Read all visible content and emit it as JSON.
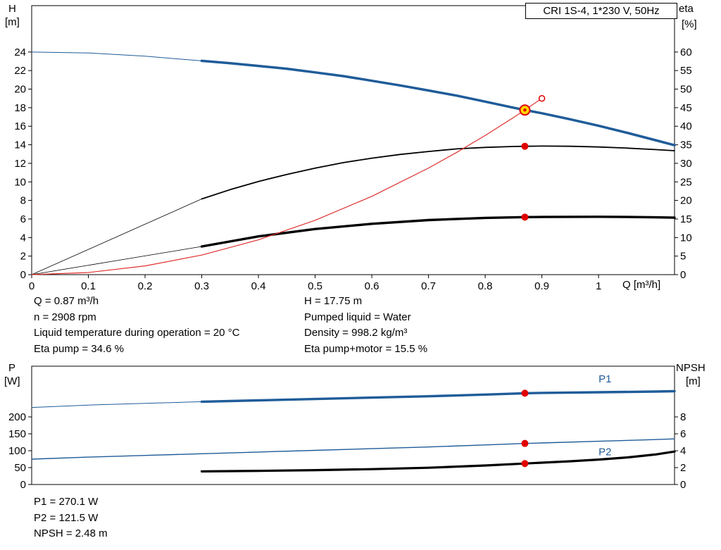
{
  "title_box": "CRI 1S-4, 1*230 V, 50Hz",
  "colors": {
    "curve_blue": "#1f5c99",
    "curve_black": "#000000",
    "curve_red": "#e03030",
    "marker_red": "#e00000",
    "duty_yellow": "#ffd800",
    "axis": "#000000"
  },
  "annotations": {
    "left": [
      "Q = 0.87 m³/h",
      "n = 2908 rpm",
      "Liquid temperature during operation = 20 °C",
      "Eta pump = 34.6 %"
    ],
    "right": [
      "H = 17.75 m",
      "Pumped liquid = Water",
      "Density = 998.2 kg/m³",
      "Eta pump+motor = 15.5 %"
    ],
    "bottom": [
      "P1 = 270.1 W",
      "P2 = 121.5 W",
      "NPSH = 2.48 m"
    ]
  },
  "chart_data": [
    {
      "type": "line",
      "title": "CRI 1S-4, 1*230 V, 50Hz",
      "x_label": "Q [m³/h]",
      "x": {
        "ticks": [
          0,
          0.1,
          0.2,
          0.3,
          0.4,
          0.5,
          0.6,
          0.7,
          0.8,
          0.9,
          1.0
        ],
        "max": 1.134
      },
      "y_left": {
        "label": "H",
        "unit": "[m]",
        "ticks": [
          0,
          2,
          4,
          6,
          8,
          10,
          12,
          14,
          16,
          18,
          20,
          22,
          24
        ],
        "max": 29.0
      },
      "y_right": {
        "label": "eta",
        "unit": "[%]",
        "ticks": [
          0,
          5,
          10,
          15,
          20,
          25,
          30,
          35,
          40,
          45,
          50,
          55,
          60
        ],
        "max": 72.5
      },
      "series": [
        {
          "name": "head-curve-thin",
          "axis": "left",
          "color": "#1f5c99",
          "width": 1,
          "points": [
            [
              0,
              24.0
            ],
            [
              0.1,
              23.9
            ],
            [
              0.2,
              23.55
            ],
            [
              0.3,
              23.05
            ]
          ]
        },
        {
          "name": "head-curve",
          "axis": "left",
          "color": "#1f5c99",
          "width": 3.5,
          "points": [
            [
              0.3,
              23.05
            ],
            [
              0.35,
              22.8
            ],
            [
              0.4,
              22.5
            ],
            [
              0.45,
              22.2
            ],
            [
              0.5,
              21.8
            ],
            [
              0.55,
              21.4
            ],
            [
              0.6,
              20.9
            ],
            [
              0.65,
              20.4
            ],
            [
              0.7,
              19.85
            ],
            [
              0.75,
              19.3
            ],
            [
              0.8,
              18.65
            ],
            [
              0.85,
              18.0
            ],
            [
              0.87,
              17.75
            ],
            [
              0.9,
              17.4
            ],
            [
              0.95,
              16.75
            ],
            [
              1.0,
              16.05
            ],
            [
              1.05,
              15.3
            ],
            [
              1.1,
              14.5
            ],
            [
              1.134,
              13.95
            ]
          ]
        },
        {
          "name": "eta-pump-curve-thin",
          "axis": "right",
          "color": "#000000",
          "width": 0.8,
          "points": [
            [
              0,
              0
            ],
            [
              0.15,
              10.2
            ],
            [
              0.3,
              20.4
            ]
          ]
        },
        {
          "name": "eta-pump-curve",
          "axis": "right",
          "color": "#000000",
          "width": 1.8,
          "points": [
            [
              0.3,
              20.4
            ],
            [
              0.35,
              22.9
            ],
            [
              0.4,
              25.1
            ],
            [
              0.45,
              27.0
            ],
            [
              0.5,
              28.7
            ],
            [
              0.55,
              30.2
            ],
            [
              0.6,
              31.4
            ],
            [
              0.65,
              32.4
            ],
            [
              0.7,
              33.2
            ],
            [
              0.75,
              33.9
            ],
            [
              0.8,
              34.3
            ],
            [
              0.85,
              34.55
            ],
            [
              0.87,
              34.6
            ],
            [
              0.9,
              34.65
            ],
            [
              0.95,
              34.6
            ],
            [
              1.0,
              34.4
            ],
            [
              1.05,
              34.1
            ],
            [
              1.1,
              33.7
            ],
            [
              1.134,
              33.4
            ]
          ]
        },
        {
          "name": "eta-pump-motor-curve-thin",
          "axis": "right",
          "color": "#000000",
          "width": 0.8,
          "points": [
            [
              0,
              0
            ],
            [
              0.15,
              3.8
            ],
            [
              0.3,
              7.6
            ]
          ]
        },
        {
          "name": "eta-pump-motor-curve",
          "axis": "right",
          "color": "#000000",
          "width": 3.4,
          "points": [
            [
              0.3,
              7.6
            ],
            [
              0.4,
              10.3
            ],
            [
              0.5,
              12.3
            ],
            [
              0.6,
              13.7
            ],
            [
              0.7,
              14.7
            ],
            [
              0.8,
              15.3
            ],
            [
              0.87,
              15.5
            ],
            [
              0.9,
              15.55
            ],
            [
              1.0,
              15.6
            ],
            [
              1.05,
              15.55
            ],
            [
              1.1,
              15.45
            ],
            [
              1.134,
              15.35
            ]
          ]
        },
        {
          "name": "system-curve",
          "axis": "left",
          "color": "#e03030",
          "width": 1.2,
          "points": [
            [
              0,
              0
            ],
            [
              0.1,
              0.23
            ],
            [
              0.2,
              0.94
            ],
            [
              0.3,
              2.11
            ],
            [
              0.4,
              3.75
            ],
            [
              0.5,
              5.86
            ],
            [
              0.6,
              8.44
            ],
            [
              0.7,
              11.49
            ],
            [
              0.75,
              13.19
            ],
            [
              0.8,
              15.0
            ],
            [
              0.85,
              16.94
            ],
            [
              0.87,
              17.75
            ],
            [
              0.9,
              19.0
            ]
          ]
        }
      ],
      "labels": [],
      "markers": [
        {
          "name": "duty-point-marker",
          "x": 0.87,
          "value": 17.75,
          "axis": "left",
          "style": "duty"
        },
        {
          "name": "system-curve-end-marker",
          "x": 0.9,
          "value": 19.0,
          "axis": "left",
          "style": "open"
        },
        {
          "name": "eta-pump-marker",
          "x": 0.87,
          "value": 34.6,
          "axis": "right",
          "style": "dot"
        },
        {
          "name": "eta-pump-motor-marker",
          "x": 0.87,
          "value": 15.5,
          "axis": "right",
          "style": "dot"
        }
      ]
    },
    {
      "type": "line",
      "title": "Power and NPSH curves",
      "x_label": "",
      "x": {
        "ticks": [],
        "max": 1.134
      },
      "y_left": {
        "label": "P",
        "unit": "[W]",
        "ticks": [
          0,
          50,
          100,
          150,
          200
        ],
        "max": 350
      },
      "y_right": {
        "label": "NPSH",
        "unit": "[m]",
        "ticks": [
          0,
          2,
          4,
          6,
          8
        ],
        "max": 14
      },
      "series": [
        {
          "name": "p1-curve-thin",
          "axis": "left",
          "color": "#1f5c99",
          "width": 1,
          "points": [
            [
              0,
              228
            ],
            [
              0.1,
              235
            ],
            [
              0.2,
              240
            ],
            [
              0.3,
              245
            ]
          ]
        },
        {
          "name": "p1-curve",
          "axis": "left",
          "color": "#1f5c99",
          "width": 3.4,
          "points": [
            [
              0.3,
              245
            ],
            [
              0.4,
              249
            ],
            [
              0.5,
              253
            ],
            [
              0.6,
              257
            ],
            [
              0.7,
              261
            ],
            [
              0.8,
              266
            ],
            [
              0.87,
              270
            ],
            [
              0.9,
              271
            ],
            [
              1.0,
              273
            ],
            [
              1.1,
              275
            ],
            [
              1.134,
              276
            ]
          ]
        },
        {
          "name": "p2-curve",
          "axis": "left",
          "color": "#1f5c99",
          "width": 1.4,
          "points": [
            [
              0,
              75
            ],
            [
              0.1,
              81
            ],
            [
              0.2,
              86
            ],
            [
              0.3,
              91
            ],
            [
              0.4,
              96
            ],
            [
              0.5,
              101
            ],
            [
              0.6,
              106
            ],
            [
              0.7,
              111
            ],
            [
              0.8,
              117
            ],
            [
              0.87,
              121.5
            ],
            [
              0.9,
              123
            ],
            [
              1.0,
              128
            ],
            [
              1.1,
              133
            ],
            [
              1.134,
              135
            ]
          ]
        },
        {
          "name": "npsh-curve",
          "axis": "right",
          "color": "#000000",
          "width": 3.2,
          "points": [
            [
              0.3,
              1.55
            ],
            [
              0.4,
              1.62
            ],
            [
              0.5,
              1.7
            ],
            [
              0.6,
              1.82
            ],
            [
              0.7,
              1.98
            ],
            [
              0.8,
              2.25
            ],
            [
              0.87,
              2.48
            ],
            [
              0.9,
              2.58
            ],
            [
              0.95,
              2.75
            ],
            [
              1.0,
              2.95
            ],
            [
              1.05,
              3.2
            ],
            [
              1.1,
              3.55
            ],
            [
              1.134,
              3.9
            ]
          ]
        }
      ],
      "labels": [
        {
          "name": "p1-series-label",
          "text": "P1",
          "x": 1.0,
          "value": 302,
          "axis": "left",
          "color": "#1f5c99"
        },
        {
          "name": "p2-series-label",
          "text": "P2",
          "x": 1.0,
          "value": 86,
          "axis": "left",
          "color": "#1f5c99"
        }
      ],
      "markers": [
        {
          "name": "p1-marker",
          "x": 0.87,
          "value": 270.1,
          "axis": "left",
          "style": "dot"
        },
        {
          "name": "p2-marker",
          "x": 0.87,
          "value": 121.5,
          "axis": "left",
          "style": "dot"
        },
        {
          "name": "npsh-marker",
          "x": 0.87,
          "value": 2.48,
          "axis": "right",
          "style": "dot"
        }
      ]
    }
  ]
}
